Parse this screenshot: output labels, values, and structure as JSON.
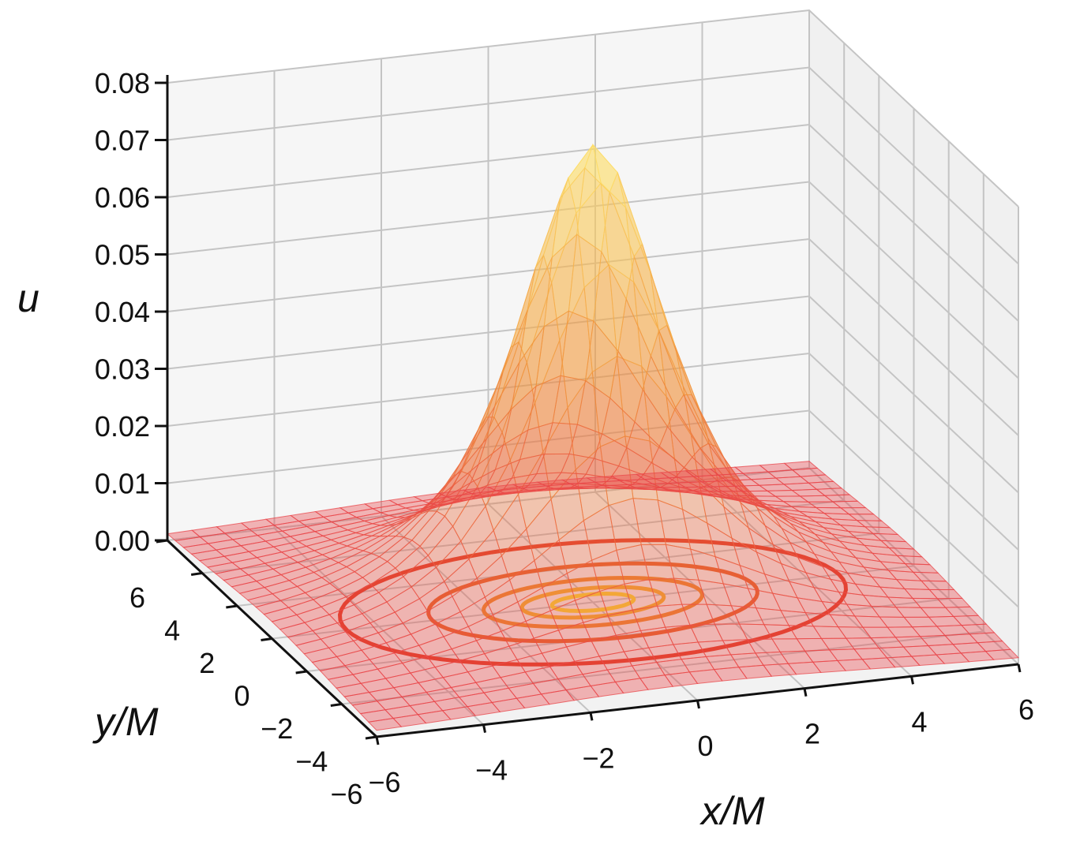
{
  "chart_data": {
    "type": "surface3d",
    "title": "",
    "xlabel": "x/M",
    "ylabel": "y/M",
    "zlabel": "u",
    "xlim": [
      -6,
      6
    ],
    "ylim": [
      -6,
      6
    ],
    "zlim": [
      0,
      0.08
    ],
    "x_ticks": [
      "−6",
      "−4",
      "−2",
      "0",
      "2",
      "4",
      "6"
    ],
    "y_ticks": [
      "−6",
      "−4",
      "−2",
      "0",
      "2",
      "4",
      "6"
    ],
    "z_ticks": [
      "0.00",
      "0.01",
      "0.02",
      "0.03",
      "0.04",
      "0.05",
      "0.06",
      "0.07",
      "0.08"
    ],
    "peak": {
      "x": 0,
      "y": 0,
      "u": 0.08
    },
    "contours": [
      {
        "level": 0.005,
        "rx": 4.6,
        "ry": 3.4
      },
      {
        "level": 0.02,
        "rx": 3.0,
        "ry": 2.1
      },
      {
        "level": 0.04,
        "rx": 2.0,
        "ry": 1.3
      },
      {
        "level": 0.055,
        "rx": 1.3,
        "ry": 0.8
      },
      {
        "level": 0.07,
        "rx": 0.75,
        "ry": 0.45
      }
    ],
    "grid": true,
    "colors": {
      "low": "#e8404a",
      "mid": "#f0903a",
      "high": "#ffe66b",
      "contour_low": "#e03c28",
      "contour_high": "#f8d830",
      "pane": "#f2f2f2",
      "grid": "#c4c4c4"
    }
  }
}
